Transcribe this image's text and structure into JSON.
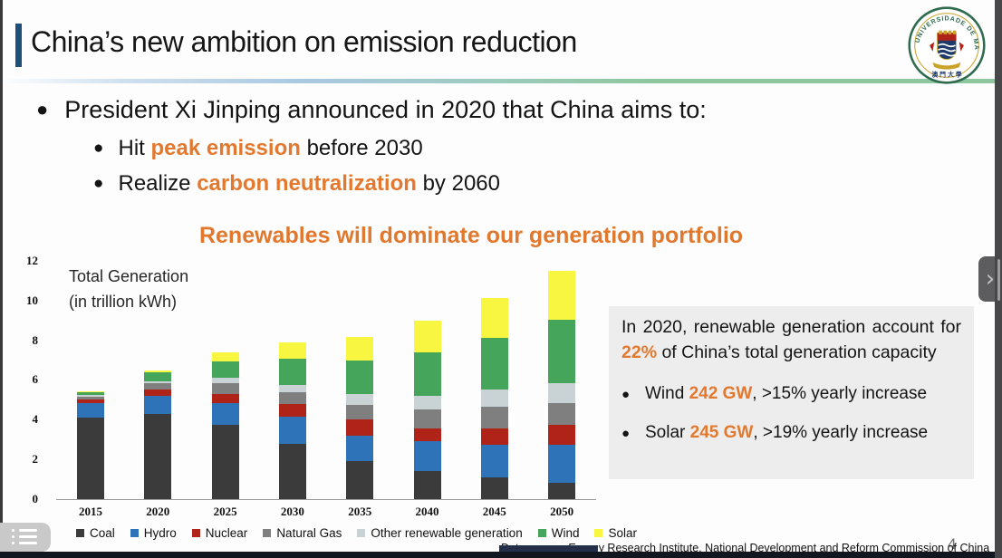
{
  "slide": {
    "title": "China’s new ambition on emission reduction",
    "bullet_main": "President Xi Jinping announced in 2020 that China aims to:",
    "bullets": [
      {
        "pre": "Hit ",
        "highlight": "peak emission",
        "post": " before 2030"
      },
      {
        "pre": "Realize ",
        "highlight": "carbon neutralization",
        "post": " by 2060"
      }
    ],
    "chart_heading": "Renewables will dominate our generation portfolio",
    "page_number": "4",
    "data_source": "Data source: Energy Research Institute, National Development and Reform Commission of China"
  },
  "info_box": {
    "paragraph": {
      "pre": "In 2020, renewable generation account for ",
      "highlight": "22%",
      "post": " of China’s total generation capacity"
    },
    "items": [
      {
        "pre": "Wind ",
        "highlight": "242 GW",
        "post": ", >15% yearly increase"
      },
      {
        "pre": "Solar ",
        "highlight": "245 GW",
        "post": ", >19% yearly increase"
      }
    ]
  },
  "chart_data": {
    "type": "bar",
    "stacked": true,
    "title": "Total Generation (in trillion kWh)",
    "annotation_line1": "Total Generation",
    "annotation_line2": "(in trillion kWh)",
    "categories": [
      "2015",
      "2020",
      "2025",
      "2030",
      "2035",
      "2040",
      "2045",
      "2050"
    ],
    "series": [
      {
        "name": "Coal",
        "color": "#3b3b3b",
        "values": [
          4.1,
          4.3,
          3.75,
          2.8,
          1.9,
          1.4,
          1.1,
          0.8
        ]
      },
      {
        "name": "Hydro",
        "color": "#2e72b8",
        "values": [
          0.75,
          0.9,
          1.1,
          1.35,
          1.3,
          1.5,
          1.65,
          1.95
        ]
      },
      {
        "name": "Nuclear",
        "color": "#b02318",
        "values": [
          0.17,
          0.3,
          0.45,
          0.65,
          0.8,
          0.65,
          0.8,
          1.0
        ]
      },
      {
        "name": "Natural Gas",
        "color": "#7f7f7f",
        "values": [
          0.15,
          0.35,
          0.55,
          0.6,
          0.75,
          0.95,
          1.1,
          1.1
        ]
      },
      {
        "name": "Other renewable generation",
        "color": "#c9d3d6",
        "values": [
          0.08,
          0.08,
          0.25,
          0.35,
          0.55,
          0.7,
          0.85,
          1.0
        ]
      },
      {
        "name": "Wind",
        "color": "#45a55a",
        "values": [
          0.15,
          0.45,
          0.85,
          1.3,
          1.7,
          2.2,
          2.6,
          3.2
        ]
      },
      {
        "name": "Solar",
        "color": "#f8f640",
        "values": [
          0.05,
          0.12,
          0.45,
          0.85,
          1.15,
          1.6,
          2.05,
          2.45
        ]
      }
    ],
    "totals": [
      5.45,
      6.5,
      7.4,
      7.9,
      8.15,
      9.0,
      10.15,
      11.5
    ],
    "ylim": [
      0,
      12
    ],
    "yticks": [
      0,
      2,
      4,
      6,
      8,
      10,
      12
    ],
    "grid": false,
    "legend_position": "bottom"
  },
  "viewer": {
    "next_button_glyph": "›"
  },
  "colors": {
    "accent_orange": "#e2792e",
    "title_bar_blue": "#1f4e79",
    "info_box_bg": "#ededed",
    "rule_gradient_blue": "#a9c9e2",
    "rule_gradient_green": "#8ec79e"
  }
}
